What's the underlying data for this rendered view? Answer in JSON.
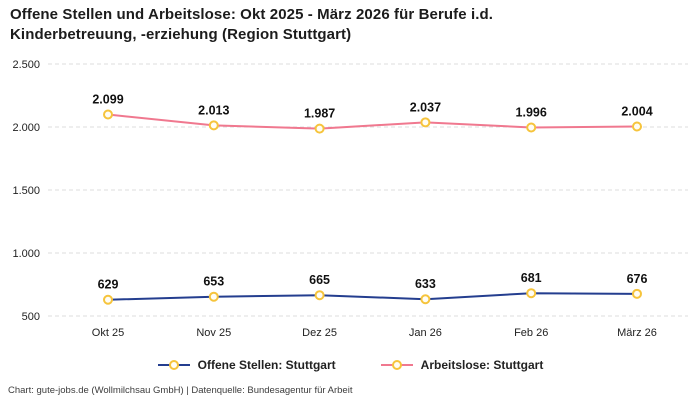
{
  "page": {
    "title_line1": "Offene Stellen und Arbeitslose: Okt 2025 - März 2026 für Berufe i.d.",
    "title_line2": "Kinderbetreuung, -erziehung (Region Stuttgart)",
    "footer": "Chart: gute-jobs.de (Wollmilchsau GmbH) | Datenquelle: Bundesagentur für Arbeit"
  },
  "chart_data": {
    "type": "line",
    "title": "Offene Stellen und Arbeitslose: Okt 2025 - März 2026 für Berufe i.d. Kinderbetreuung, -erziehung (Region Stuttgart)",
    "categories": [
      "Okt 25",
      "Nov 25",
      "Dez 25",
      "Jan 26",
      "Feb 26",
      "März 26"
    ],
    "series": [
      {
        "name": "Offene Stellen: Stuttgart",
        "color": "#243e8f",
        "values": [
          629,
          653,
          665,
          633,
          681,
          676
        ],
        "labels": [
          "629",
          "653",
          "665",
          "633",
          "681",
          "676"
        ]
      },
      {
        "name": "Arbeitslose: Stuttgart",
        "color": "#f0788f",
        "values": [
          2099,
          2013,
          1987,
          2037,
          1996,
          2004
        ],
        "labels": [
          "2.099",
          "2.013",
          "1.987",
          "2.037",
          "1.996",
          "2.004"
        ]
      }
    ],
    "marker": {
      "fill": "#fffdf4",
      "stroke": "#f6c43c"
    },
    "ylim": [
      500,
      2500
    ],
    "yticks": [
      500,
      1000,
      1500,
      2000,
      2500
    ],
    "ytick_labels": [
      "500",
      "1.000",
      "1.500",
      "2.000",
      "2.500"
    ],
    "grid": true,
    "grid_color": "#dcdcdc",
    "legend_position": "bottom"
  }
}
